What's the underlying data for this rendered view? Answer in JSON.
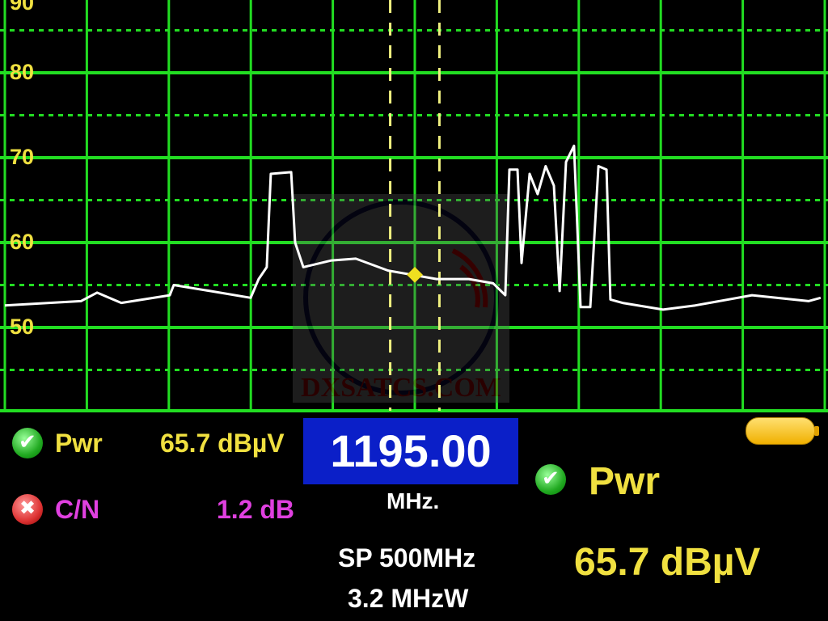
{
  "chart_data": {
    "type": "line",
    "title": "",
    "xlabel": "",
    "ylabel": "",
    "xlim": [
      945,
      1445
    ],
    "ylim": [
      40,
      90
    ],
    "y_ticks": [
      "90",
      "80",
      "70",
      "60",
      "50"
    ],
    "grid": true,
    "series": [
      {
        "x": [
          945,
          991.4,
          1001.2,
          1016,
          1045.6,
          1048,
          1070.2,
          1094.9,
          1099.8,
          1104.7,
          1107.2,
          1119.6,
          1122,
          1127,
          1144.2,
          1159,
          1178.7,
          1193.5,
          1208.3,
          1228,
          1242.8,
          1250.2,
          1252.7,
          1257.6,
          1260.1,
          1265,
          1269.9,
          1274.8,
          1279.8,
          1283.3,
          1287.2,
          1292.1,
          1296.1,
          1302,
          1307,
          1311.9,
          1314.3,
          1321.7,
          1346.4,
          1366.1,
          1400.6,
          1435.1,
          1442.5
        ],
        "y": [
          52.6,
          53.1,
          54.1,
          52.9,
          53.8,
          55,
          54.3,
          53.5,
          55.7,
          57.1,
          68.1,
          68.3,
          60,
          57.1,
          57.9,
          58.1,
          56.7,
          56.2,
          55.7,
          55.7,
          55.2,
          53.8,
          68.6,
          68.6,
          57.6,
          68.1,
          65.7,
          69,
          66.7,
          54.3,
          69.5,
          71.4,
          52.4,
          52.4,
          69,
          68.6,
          53.3,
          52.9,
          52.1,
          52.6,
          53.8,
          53.1,
          53.5
        ]
      }
    ],
    "marker": {
      "x": 1195,
      "y": 56.2
    },
    "bandwidth_markers": [
      1180,
      1210
    ],
    "colors": {
      "grid": "#22dd22",
      "trace": "#ffffff",
      "marker": "#f0e020",
      "tick_labels": "#f0e040"
    }
  },
  "watermark": "DXSATCS.COM",
  "readouts": {
    "pwr_label": "Pwr",
    "pwr_value": "65.7 dBµV",
    "pwr_status": "ok",
    "cn_label": "C/N",
    "cn_value": "1.2 dB",
    "cn_status": "fail",
    "frequency": "1195.00",
    "frequency_unit": "MHz.",
    "span": "SP 500MHz",
    "bandwidth": "3.2 MHzW",
    "big_label": "Pwr",
    "big_value": "65.7 dBµV"
  },
  "battery": {
    "icon": "battery-icon",
    "level": 1.0,
    "color": "#f0c020"
  }
}
